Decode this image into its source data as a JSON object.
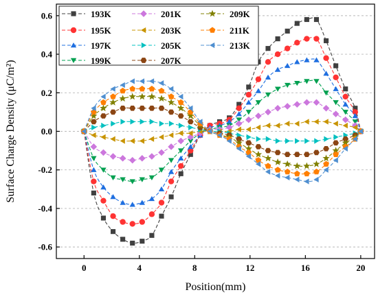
{
  "chart_data": {
    "type": "scatter",
    "xlabel": "Position(mm)",
    "ylabel": "Surface Charge Density (μC/m²)",
    "xlim": [
      -2,
      21
    ],
    "ylim": [
      -0.66,
      0.66
    ],
    "xticks": [
      0,
      4,
      8,
      12,
      16,
      20
    ],
    "yticks": [
      -0.6,
      -0.4,
      -0.2,
      0.0,
      0.2,
      0.4,
      0.6
    ],
    "xtick_labels": [
      "0",
      "4",
      "8",
      "12",
      "16",
      "20"
    ],
    "ytick_labels": [
      "-0.6",
      "-0.4",
      "-0.2",
      "0.0",
      "0.2",
      "0.4",
      "0.6"
    ],
    "grid": "horizontal dashed",
    "legend_position": "top-left",
    "legend_columns": 3,
    "x": [
      0,
      0.7,
      1.4,
      2.1,
      2.8,
      3.5,
      4.2,
      4.9,
      5.6,
      6.3,
      7.0,
      7.7,
      8.4,
      9.1,
      9.8,
      10.5,
      11.2,
      11.9,
      12.6,
      13.3,
      14.0,
      14.7,
      15.4,
      16.1,
      16.8,
      17.5,
      18.2,
      18.9,
      19.6,
      20.0
    ],
    "series": [
      {
        "name": "193K",
        "color": "#404040",
        "marker": "square",
        "values": [
          0,
          -0.32,
          -0.45,
          -0.52,
          -0.56,
          -0.58,
          -0.57,
          -0.54,
          -0.44,
          -0.34,
          -0.22,
          -0.12,
          -0.02,
          0.03,
          0.05,
          0.07,
          0.14,
          0.23,
          0.36,
          0.43,
          0.48,
          0.52,
          0.56,
          0.58,
          0.58,
          0.47,
          0.34,
          0.22,
          0.12,
          0
        ]
      },
      {
        "name": "195K",
        "color": "#ff3333",
        "marker": "circle",
        "values": [
          0,
          -0.26,
          -0.36,
          -0.44,
          -0.47,
          -0.48,
          -0.47,
          -0.43,
          -0.37,
          -0.26,
          -0.18,
          -0.1,
          -0.02,
          0.03,
          0.04,
          0.06,
          0.12,
          0.19,
          0.27,
          0.36,
          0.4,
          0.43,
          0.46,
          0.48,
          0.48,
          0.38,
          0.28,
          0.18,
          0.1,
          0
        ]
      },
      {
        "name": "197K",
        "color": "#1f6fe0",
        "marker": "triangle-up",
        "values": [
          0,
          -0.2,
          -0.29,
          -0.34,
          -0.37,
          -0.38,
          -0.37,
          -0.35,
          -0.3,
          -0.21,
          -0.14,
          -0.08,
          -0.02,
          0.02,
          0.03,
          0.05,
          0.09,
          0.15,
          0.21,
          0.28,
          0.32,
          0.34,
          0.36,
          0.37,
          0.37,
          0.3,
          0.22,
          0.14,
          0.08,
          0
        ]
      },
      {
        "name": "199K",
        "color": "#00a050",
        "marker": "triangle-down",
        "values": [
          0,
          -0.14,
          -0.2,
          -0.24,
          -0.25,
          -0.26,
          -0.25,
          -0.24,
          -0.2,
          -0.15,
          -0.1,
          -0.05,
          -0.01,
          0.01,
          0.02,
          0.03,
          0.06,
          0.1,
          0.15,
          0.19,
          0.22,
          0.24,
          0.25,
          0.26,
          0.26,
          0.2,
          0.15,
          0.1,
          0.05,
          0
        ]
      },
      {
        "name": "201K",
        "color": "#cc77dd",
        "marker": "diamond",
        "values": [
          0,
          -0.08,
          -0.11,
          -0.13,
          -0.14,
          -0.15,
          -0.14,
          -0.13,
          -0.11,
          -0.08,
          -0.05,
          -0.03,
          -0.01,
          0.01,
          0.01,
          0.02,
          0.04,
          0.06,
          0.08,
          0.1,
          0.12,
          0.13,
          0.14,
          0.15,
          0.15,
          0.12,
          0.09,
          0.06,
          0.03,
          0
        ]
      },
      {
        "name": "203K",
        "color": "#c89400",
        "marker": "triangle-left",
        "values": [
          0,
          -0.02,
          -0.03,
          -0.04,
          -0.05,
          -0.05,
          -0.05,
          -0.04,
          -0.03,
          -0.02,
          -0.01,
          -0.01,
          0.0,
          0.0,
          0.0,
          0.0,
          0.01,
          0.01,
          0.02,
          0.03,
          0.03,
          0.04,
          0.04,
          0.05,
          0.05,
          0.05,
          0.04,
          0.03,
          0.02,
          0
        ]
      },
      {
        "name": "205K",
        "color": "#00c0c0",
        "marker": "triangle-right",
        "values": [
          0,
          0.02,
          0.03,
          0.04,
          0.05,
          0.05,
          0.05,
          0.05,
          0.04,
          0.04,
          0.03,
          0.02,
          0.01,
          0.0,
          0.0,
          -0.01,
          -0.02,
          -0.03,
          -0.04,
          -0.04,
          -0.05,
          -0.05,
          -0.05,
          -0.05,
          -0.05,
          -0.04,
          -0.03,
          -0.02,
          -0.01,
          0
        ]
      },
      {
        "name": "207K",
        "color": "#8b4513",
        "marker": "hexagon",
        "values": [
          0,
          0.05,
          0.08,
          0.1,
          0.12,
          0.12,
          0.12,
          0.12,
          0.12,
          0.1,
          0.08,
          0.05,
          0.02,
          0.0,
          -0.01,
          -0.02,
          -0.04,
          -0.06,
          -0.08,
          -0.1,
          -0.11,
          -0.12,
          -0.12,
          -0.12,
          -0.11,
          -0.09,
          -0.06,
          -0.04,
          -0.02,
          0
        ]
      },
      {
        "name": "209K",
        "color": "#808000",
        "marker": "star",
        "values": [
          0,
          0.08,
          0.12,
          0.15,
          0.17,
          0.18,
          0.18,
          0.18,
          0.17,
          0.15,
          0.12,
          0.08,
          0.03,
          0.0,
          -0.02,
          -0.03,
          -0.06,
          -0.09,
          -0.12,
          -0.14,
          -0.16,
          -0.17,
          -0.18,
          -0.18,
          -0.17,
          -0.14,
          -0.1,
          -0.06,
          -0.03,
          0
        ]
      },
      {
        "name": "211K",
        "color": "#ff7f00",
        "marker": "pentagon",
        "values": [
          0,
          0.1,
          0.15,
          0.18,
          0.21,
          0.22,
          0.22,
          0.22,
          0.21,
          0.18,
          0.15,
          0.1,
          0.04,
          0.0,
          -0.02,
          -0.04,
          -0.08,
          -0.11,
          -0.15,
          -0.18,
          -0.2,
          -0.21,
          -0.22,
          -0.22,
          -0.21,
          -0.17,
          -0.12,
          -0.08,
          -0.04,
          0
        ]
      },
      {
        "name": "213K",
        "color": "#4f8fd0",
        "marker": "triangle-left",
        "values": [
          0,
          0.12,
          0.18,
          0.22,
          0.24,
          0.26,
          0.26,
          0.26,
          0.25,
          0.22,
          0.18,
          0.12,
          0.05,
          0.0,
          -0.02,
          -0.05,
          -0.09,
          -0.13,
          -0.17,
          -0.21,
          -0.23,
          -0.24,
          -0.25,
          -0.26,
          -0.25,
          -0.2,
          -0.15,
          -0.09,
          -0.04,
          0
        ]
      }
    ]
  }
}
